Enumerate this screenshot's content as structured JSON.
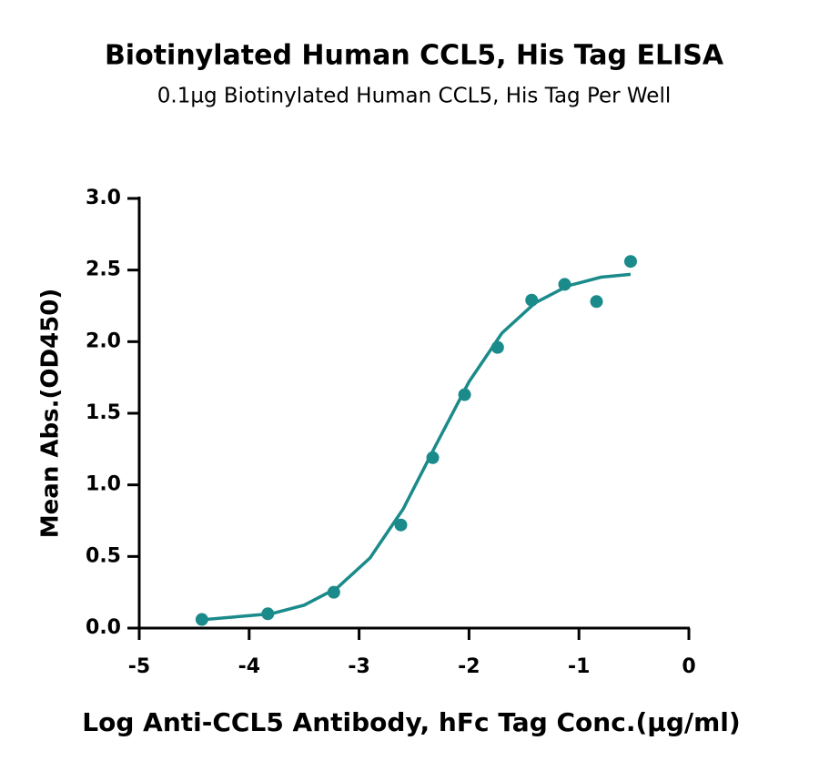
{
  "chart_data": {
    "type": "scatter",
    "title": "Biotinylated Human CCL5, His Tag ELISA",
    "subtitle": "0.1µg Biotinylated Human CCL5, His Tag Per Well",
    "x_label": "Log Anti-CCL5 Antibody, hFc Tag Conc.(µg/ml)",
    "y_label": "Mean Abs.(OD450)",
    "color": "#1a8a8a",
    "x": [
      -4.43,
      -3.83,
      -3.23,
      -2.62,
      -2.33,
      -2.04,
      -1.74,
      -1.43,
      -1.13,
      -0.84,
      -0.53
    ],
    "values": [
      0.06,
      0.1,
      0.25,
      0.72,
      1.19,
      1.63,
      1.96,
      2.29,
      2.4,
      2.28,
      2.56
    ],
    "fit": {
      "x": [
        -4.4,
        -4.1,
        -3.8,
        -3.5,
        -3.2,
        -2.9,
        -2.6,
        -2.3,
        -2.0,
        -1.7,
        -1.4,
        -1.1,
        -0.8,
        -0.53
      ],
      "values": [
        0.06,
        0.08,
        0.1,
        0.16,
        0.28,
        0.49,
        0.83,
        1.28,
        1.72,
        2.06,
        2.27,
        2.39,
        2.45,
        2.47
      ]
    },
    "xlim": [
      -5,
      0
    ],
    "xticks": [
      -5,
      -4,
      -3,
      -2,
      -1,
      0
    ],
    "ylim": [
      0,
      3
    ],
    "yticks": [
      {
        "value": 0,
        "label": "0.0"
      },
      0.5,
      {
        "value": 1,
        "label": "1.0"
      },
      1.5,
      {
        "value": 2,
        "label": "2.0"
      },
      2.5,
      {
        "value": 3,
        "label": "3.0"
      }
    ]
  }
}
